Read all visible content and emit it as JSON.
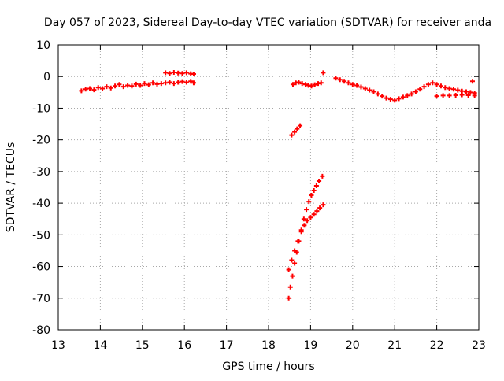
{
  "chart_data": {
    "type": "scatter",
    "title": "Day 057 of 2023, Sidereal Day-to-day VTEC variation (SDTVAR) for receiver anda",
    "xlabel": "GPS time / hours",
    "ylabel": "SDTVAR / TECUs",
    "xlim": [
      13,
      23
    ],
    "ylim": [
      -80,
      10
    ],
    "xticks": [
      "13",
      "14",
      "15",
      "16",
      "17",
      "18",
      "19",
      "20",
      "21",
      "22",
      "23"
    ],
    "yticks": [
      "10",
      "0",
      "-10",
      "-20",
      "-30",
      "-40",
      "-50",
      "-60",
      "-70",
      "-80"
    ],
    "grid": true,
    "marker": "+",
    "marker_color": "#ff0000",
    "series": [
      {
        "points": [
          [
            13.55,
            -4.5
          ],
          [
            13.65,
            -4.0
          ],
          [
            13.75,
            -3.8
          ],
          [
            13.85,
            -4.2
          ],
          [
            13.95,
            -3.5
          ],
          [
            14.05,
            -3.8
          ],
          [
            14.15,
            -3.2
          ],
          [
            14.25,
            -3.6
          ],
          [
            14.35,
            -3.0
          ],
          [
            14.45,
            -2.5
          ],
          [
            14.55,
            -3.2
          ],
          [
            14.65,
            -2.8
          ],
          [
            14.75,
            -3.0
          ],
          [
            14.85,
            -2.4
          ],
          [
            14.95,
            -2.8
          ],
          [
            15.05,
            -2.2
          ],
          [
            15.15,
            -2.6
          ],
          [
            15.25,
            -2.0
          ],
          [
            15.35,
            -2.4
          ],
          [
            15.45,
            -2.2
          ],
          [
            15.55,
            -2.0
          ],
          [
            15.65,
            -1.8
          ],
          [
            15.75,
            -2.2
          ],
          [
            15.85,
            -1.8
          ],
          [
            15.95,
            -1.6
          ],
          [
            16.05,
            -1.8
          ],
          [
            16.15,
            -1.5
          ],
          [
            16.22,
            -2.0
          ],
          [
            15.55,
            1.2
          ],
          [
            15.65,
            1.0
          ],
          [
            15.75,
            1.3
          ],
          [
            15.85,
            1.1
          ],
          [
            15.95,
            1.0
          ],
          [
            16.05,
            1.2
          ],
          [
            16.15,
            0.9
          ],
          [
            16.22,
            0.8
          ],
          [
            18.55,
            -18.5
          ],
          [
            18.62,
            -17.5
          ],
          [
            18.68,
            -16.5
          ],
          [
            18.75,
            -15.5
          ],
          [
            18.48,
            -61.0
          ],
          [
            18.55,
            -58.0
          ],
          [
            18.62,
            -55.0
          ],
          [
            18.7,
            -52.0
          ],
          [
            18.78,
            -49.0
          ],
          [
            18.85,
            -47.0
          ],
          [
            18.92,
            -45.5
          ],
          [
            19.0,
            -44.5
          ],
          [
            19.08,
            -43.5
          ],
          [
            19.15,
            -42.5
          ],
          [
            19.22,
            -41.5
          ],
          [
            19.3,
            -40.5
          ],
          [
            18.48,
            -70.0
          ],
          [
            18.52,
            -66.5
          ],
          [
            18.57,
            -63.0
          ],
          [
            18.62,
            -59.0
          ],
          [
            18.67,
            -55.5
          ],
          [
            18.72,
            -52.0
          ],
          [
            18.78,
            -48.5
          ],
          [
            18.84,
            -45.0
          ],
          [
            18.9,
            -42.0
          ],
          [
            18.96,
            -39.5
          ],
          [
            19.02,
            -37.5
          ],
          [
            19.08,
            -36.0
          ],
          [
            19.14,
            -34.5
          ],
          [
            19.2,
            -33.0
          ],
          [
            19.28,
            -31.5
          ],
          [
            18.58,
            -2.5
          ],
          [
            18.65,
            -2.0
          ],
          [
            18.72,
            -1.8
          ],
          [
            18.8,
            -2.2
          ],
          [
            18.88,
            -2.5
          ],
          [
            18.95,
            -2.8
          ],
          [
            19.02,
            -3.0
          ],
          [
            19.1,
            -2.6
          ],
          [
            19.18,
            -2.2
          ],
          [
            19.25,
            -2.0
          ],
          [
            19.3,
            1.2
          ],
          [
            19.6,
            -0.5
          ],
          [
            19.7,
            -1.0
          ],
          [
            19.8,
            -1.5
          ],
          [
            19.9,
            -2.0
          ],
          [
            20.0,
            -2.5
          ],
          [
            20.1,
            -2.8
          ],
          [
            20.2,
            -3.3
          ],
          [
            20.3,
            -3.8
          ],
          [
            20.4,
            -4.3
          ],
          [
            20.5,
            -4.8
          ],
          [
            20.6,
            -5.5
          ],
          [
            20.7,
            -6.2
          ],
          [
            20.8,
            -6.8
          ],
          [
            20.9,
            -7.2
          ],
          [
            21.0,
            -7.5
          ],
          [
            21.1,
            -7.0
          ],
          [
            21.2,
            -6.5
          ],
          [
            21.3,
            -6.0
          ],
          [
            21.4,
            -5.5
          ],
          [
            21.5,
            -4.8
          ],
          [
            21.6,
            -4.0
          ],
          [
            21.7,
            -3.2
          ],
          [
            21.8,
            -2.5
          ],
          [
            21.9,
            -2.0
          ],
          [
            22.0,
            -2.5
          ],
          [
            22.1,
            -3.0
          ],
          [
            22.2,
            -3.5
          ],
          [
            22.3,
            -3.8
          ],
          [
            22.4,
            -4.0
          ],
          [
            22.5,
            -4.3
          ],
          [
            22.6,
            -4.6
          ],
          [
            22.7,
            -4.8
          ],
          [
            22.8,
            -5.0
          ],
          [
            22.9,
            -5.2
          ],
          [
            22.0,
            -6.2
          ],
          [
            22.15,
            -6.0
          ],
          [
            22.3,
            -6.0
          ],
          [
            22.45,
            -5.9
          ],
          [
            22.6,
            -5.8
          ],
          [
            22.75,
            -5.9
          ],
          [
            22.9,
            -6.0
          ],
          [
            22.85,
            -1.5
          ]
        ]
      }
    ]
  }
}
